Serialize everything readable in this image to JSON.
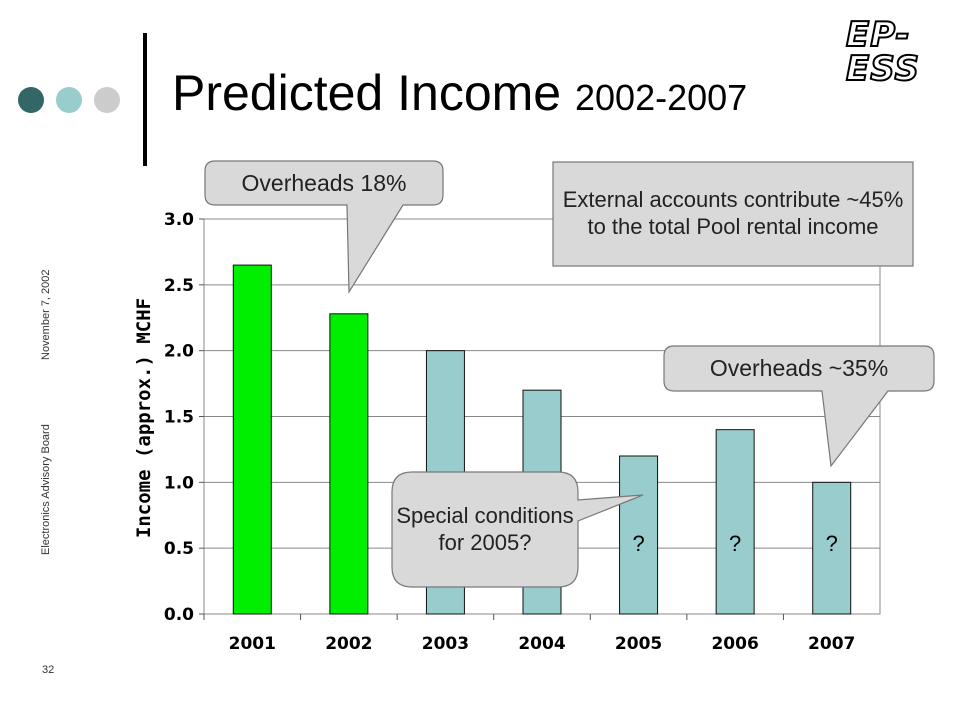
{
  "slide": {
    "title": "Predicted Income",
    "title_years": "2002-2007",
    "logo_text": "EP-ESS",
    "side_label_top": "November 7, 2002",
    "side_label_bottom": "Electronics Advisory Board",
    "page_number": "32",
    "dot_colors": [
      "#336666",
      "#99cccc",
      "#cccccc"
    ]
  },
  "callouts": {
    "overheads_2002": "Overheads 18%",
    "external_accounts": "External accounts contribute ~45% to the total Pool rental income",
    "overheads_2007": "Overheads ~35%",
    "special_conditions": "Special conditions for 2005?"
  },
  "chart_data": {
    "type": "bar",
    "ylabel": "Income (approx.) MCHF",
    "xlabel": "",
    "categories": [
      "2001",
      "2002",
      "2003",
      "2004",
      "2005",
      "2006",
      "2007"
    ],
    "values": [
      2.65,
      2.28,
      2.0,
      1.7,
      1.2,
      1.4,
      1.0
    ],
    "bar_colors": [
      "#00ee00",
      "#00ee00",
      "#99cccc",
      "#99cccc",
      "#99cccc",
      "#99cccc",
      "#99cccc"
    ],
    "bar_labels": [
      "",
      "",
      "",
      "",
      "?",
      "?",
      "?"
    ],
    "ylim": [
      0,
      3.0
    ],
    "yticks": [
      "0.0",
      "0.5",
      "1.0",
      "1.5",
      "2.0",
      "2.5",
      "3.0"
    ],
    "grid": true
  }
}
